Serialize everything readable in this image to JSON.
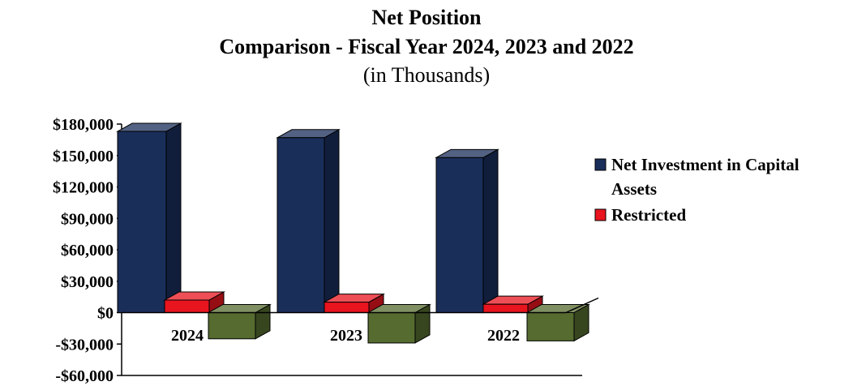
{
  "chart_data": {
    "type": "bar",
    "title": "Net Position",
    "subtitle": "Comparison - Fiscal Year 2024, 2023 and 2022",
    "units_note": "(in Thousands)",
    "categories": [
      "2024",
      "2023",
      "2022"
    ],
    "series": [
      {
        "name": "Net Investment in Capital Assets",
        "values": [
          173000,
          167000,
          148000
        ],
        "color": "#1a2e5a"
      },
      {
        "name": "Restricted",
        "values": [
          12000,
          10000,
          8000
        ],
        "color": "#e8141e"
      },
      {
        "values": [
          -25000,
          -29000,
          -27000
        ],
        "color": "#556b2f"
      }
    ],
    "ylim": [
      -60000,
      180000
    ],
    "yticks": [
      -60000,
      -30000,
      0,
      30000,
      60000,
      90000,
      120000,
      150000,
      180000
    ],
    "ytick_labels": [
      "-$60,000",
      "-$30,000",
      "$0",
      "$30,000",
      "$60,000",
      "$90,000",
      "$120,000",
      "$150,000",
      "$180,000"
    ],
    "legend_lines": [
      [
        "Net Investment in Capital",
        "Assets"
      ],
      [
        "Restricted"
      ]
    ],
    "legend_position": "right",
    "grid": false,
    "style": "3d-bar"
  }
}
